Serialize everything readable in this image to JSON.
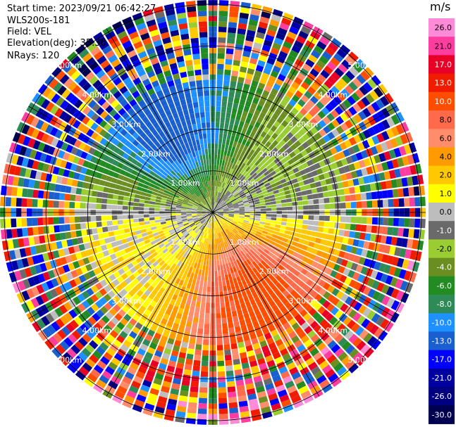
{
  "info": {
    "start_time": "Start time: 2023/09/21 06:42:27",
    "instrument": "WLS200s-181",
    "field": "Field: VEL",
    "elevation": "Elevation(deg): 35.30",
    "nrays": "NRays: 120"
  },
  "chart_data": {
    "type": "heatmap",
    "projection": "polar-ppi",
    "field": "VEL",
    "units": "m/s",
    "nrays": 120,
    "elevation_deg": 35.3,
    "range_rings_km": [
      1.0,
      2.0,
      3.0,
      4.0,
      5.0
    ],
    "ring_labels": [
      "1.00km",
      "2.00km",
      "3.00km",
      "4.00km",
      "5.00km"
    ],
    "spokes_deg": [
      0,
      30,
      60,
      90,
      120,
      150,
      180,
      210,
      240,
      270,
      300,
      330
    ],
    "max_range_km": 5.1,
    "dominant_pattern": {
      "negative_sector_deg": [
        270,
        360
      ],
      "positive_sector_deg": [
        90,
        250
      ],
      "peak_velocity_ms": 13.0,
      "inner_noise_free_km": 3.2
    },
    "colorbar": {
      "title": "m/s",
      "ticks": [
        "26.0",
        "21.0",
        "17.0",
        "13.0",
        "10.0",
        "8.0",
        "6.0",
        "4.0",
        "2.0",
        "1.0",
        "0.0",
        "-1.0",
        "-2.0",
        "-4.0",
        "-6.0",
        "-8.0",
        "-10.0",
        "-13.0",
        "-17.0",
        "-21.0",
        "-26.0",
        "-30.0"
      ],
      "bands": [
        {
          "color": "#ff8ad8"
        },
        {
          "color": "#ff3d9e"
        },
        {
          "color": "#e80026"
        },
        {
          "color": "#f01c00"
        },
        {
          "color": "#ff4d00"
        },
        {
          "color": "#ff6a4a"
        },
        {
          "color": "#ff8c6a"
        },
        {
          "color": "#ff9a00"
        },
        {
          "color": "#ffc800"
        },
        {
          "color": "#ffff00"
        },
        {
          "color": "#bdbdbd"
        },
        {
          "color": "#6a6a6a"
        },
        {
          "color": "#9acd32"
        },
        {
          "color": "#6b8e23"
        },
        {
          "color": "#228b22"
        },
        {
          "color": "#2e8b57"
        },
        {
          "color": "#1e90ff"
        },
        {
          "color": "#1a5fd0"
        },
        {
          "color": "#0000ff"
        },
        {
          "color": "#0000a0"
        },
        {
          "color": "#000080"
        },
        {
          "color": "#000050"
        }
      ]
    }
  }
}
